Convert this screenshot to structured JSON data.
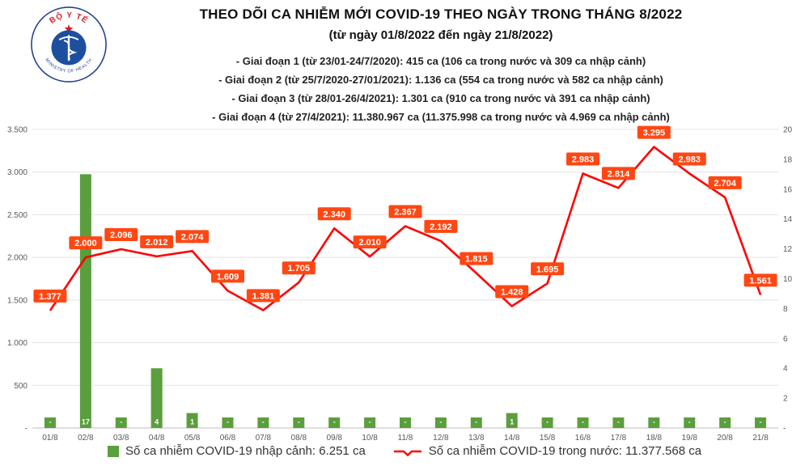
{
  "header": {
    "title": "THEO DÕI CA NHIỄM MỚI COVID-19 THEO NGÀY TRONG THÁNG 8/2022",
    "subtitle": "(từ ngày 01/8/2022 đến ngày 21/8/2022)",
    "stages": [
      "- Giai đoạn 1 (từ 23/01-24/7/2020): 415 ca (106 ca trong nước và 309 ca nhập cảnh)",
      "- Giai đoạn 2 (từ 25/7/2020-27/01/2021): 1.136 ca (554 ca trong nước và 582 ca nhập cảnh)",
      "- Giai đoạn 3 (từ 28/01-26/4/2021): 1.301 ca (910 ca trong nước và 391 ca nhập cảnh)",
      "- Giai đoạn 4 (từ 27/4/2021): 11.380.967 ca (11.375.998 ca trong nước và 4.969 ca nhập cảnh)"
    ],
    "logo": {
      "top_text": "BỘ Y TẾ",
      "bottom_text": "MINISTRY OF HEALTH"
    }
  },
  "chart_data": {
    "type": "combo bar + line",
    "categories": [
      "01/8",
      "02/8",
      "03/8",
      "04/8",
      "05/8",
      "06/8",
      "07/8",
      "08/8",
      "09/8",
      "10/8",
      "11/8",
      "12/8",
      "13/8",
      "14/8",
      "15/8",
      "16/8",
      "17/8",
      "18/8",
      "19/8",
      "20/8",
      "21/8"
    ],
    "series": [
      {
        "name": "Số ca nhiễm COVID-19 nhập cảnh",
        "type": "bar",
        "axis": "right",
        "color": "#5b9e3d",
        "values": [
          0,
          17,
          0,
          4,
          1,
          0,
          0,
          0,
          0,
          0,
          0,
          0,
          0,
          1,
          0,
          0,
          0,
          0,
          0,
          0,
          0
        ],
        "labels": [
          "-",
          "17",
          "-",
          "4",
          "1",
          "-",
          "-",
          "-",
          "-",
          "-",
          "-",
          "-",
          "-",
          "1",
          "-",
          "-",
          "-",
          "-",
          "-",
          "-",
          "-"
        ]
      },
      {
        "name": "Số ca nhiễm COVID-19 trong nước",
        "type": "line",
        "axis": "left",
        "color": "#ff0000",
        "values": [
          1377,
          2000,
          2096,
          2012,
          2074,
          1609,
          1381,
          1705,
          2340,
          2010,
          2367,
          2192,
          1815,
          1428,
          1695,
          2983,
          2814,
          3295,
          2983,
          2704,
          1561
        ],
        "labels": [
          "1.377",
          "2.000",
          "2.096",
          "2.012",
          "2.074",
          "1.609",
          "1.381",
          "1.705",
          "2.340",
          "2.010",
          "2.367",
          "2.192",
          "1.815",
          "1.428",
          "1.695",
          "2.983",
          "2.814",
          "3.295",
          "2.983",
          "2.704",
          "1.561"
        ]
      }
    ],
    "left_axis": {
      "min": 0,
      "max": 3500,
      "ticks": [
        "3.500",
        "3.000",
        "2.500",
        "2.000",
        "1.500",
        "1.000",
        "500",
        "-"
      ]
    },
    "right_axis": {
      "min": 0,
      "max": 20,
      "ticks": [
        "20",
        "18",
        "16",
        "14",
        "12",
        "10",
        "8",
        "6",
        "4",
        "2",
        "-"
      ]
    },
    "grid": true,
    "label_color": "#ff4713",
    "legend_position": "bottom"
  },
  "legend": {
    "bar_label": "Số ca nhiễm COVID-19 nhập cảnh: 6.251 ca",
    "line_label": "Số ca nhiễm COVID-19 trong nước: 11.377.568 ca"
  }
}
